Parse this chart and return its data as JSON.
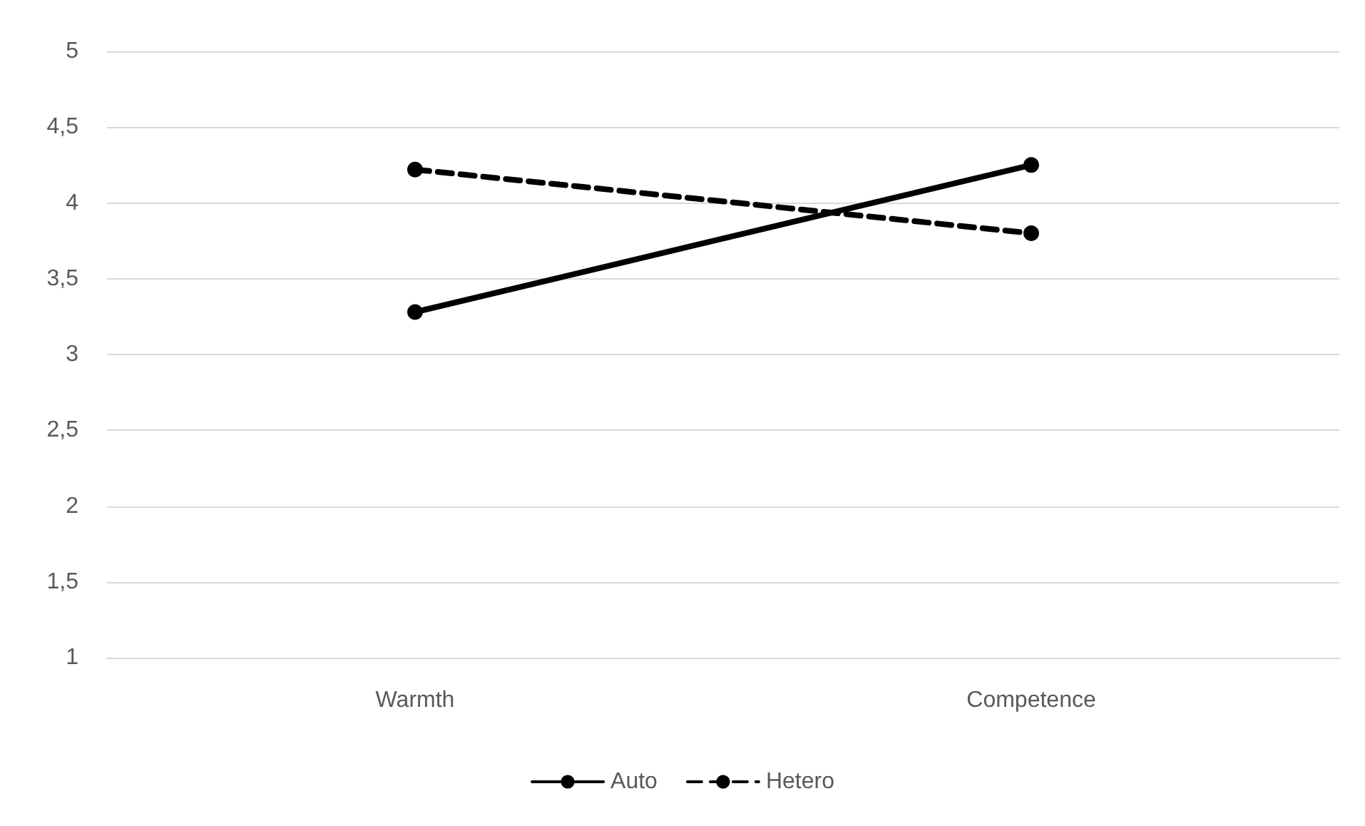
{
  "chart_data": {
    "type": "line",
    "categories": [
      "Warmth",
      "Competence"
    ],
    "series": [
      {
        "name": "Auto",
        "color": "#000000",
        "values": [
          3.28,
          4.25
        ],
        "line_style": "solid"
      },
      {
        "name": "Hetero",
        "color": "#000000",
        "values": [
          4.22,
          3.8
        ],
        "line_style": "dashed"
      }
    ],
    "ylim": [
      1,
      5
    ],
    "yticks": [
      {
        "value": 1,
        "label": "1"
      },
      {
        "value": 1.5,
        "label": "1,5"
      },
      {
        "value": 2,
        "label": "2"
      },
      {
        "value": 2.5,
        "label": "2,5"
      },
      {
        "value": 3,
        "label": "3"
      },
      {
        "value": 3.5,
        "label": "3,5"
      },
      {
        "value": 4,
        "label": "4"
      },
      {
        "value": 4.5,
        "label": "4,5"
      },
      {
        "value": 5,
        "label": "5"
      }
    ],
    "grid": "y",
    "legend": "bottom",
    "marker": "circle"
  }
}
